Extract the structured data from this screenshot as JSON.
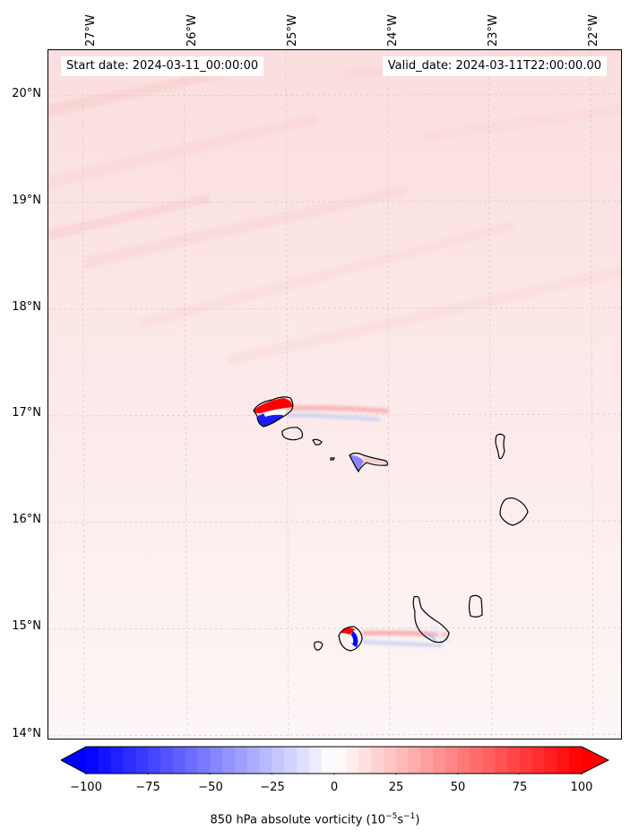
{
  "map": {
    "start_date_text": "Start date: 2024-03-11_00:00:00",
    "valid_date_text": "Valid_date: 2024-03-11T22:00:00.00",
    "lon_labels": [
      "27°W",
      "26°W",
      "25°W",
      "24°W",
      "23°W",
      "22°W"
    ],
    "lat_labels": [
      "20°N",
      "19°N",
      "18°N",
      "17°N",
      "16°N",
      "15°N",
      "14°N"
    ],
    "background_color": "#fdf6f6",
    "coastline_color": "#000000",
    "gridline_color": "#c8c8c8"
  },
  "colorbar": {
    "ticks": [
      "−100",
      "−75",
      "−50",
      "−25",
      "0",
      "25",
      "50",
      "75",
      "100"
    ],
    "label_text": "850 hPa absolute vorticity (10",
    "label_exp": "−5",
    "label_unit": "s",
    "label_unit_exp": "−1",
    "label_close": ")",
    "min": -100,
    "max": 100,
    "negative_color": "#0000ff",
    "zero_color": "#ffffff",
    "positive_color": "#ff0000"
  }
}
